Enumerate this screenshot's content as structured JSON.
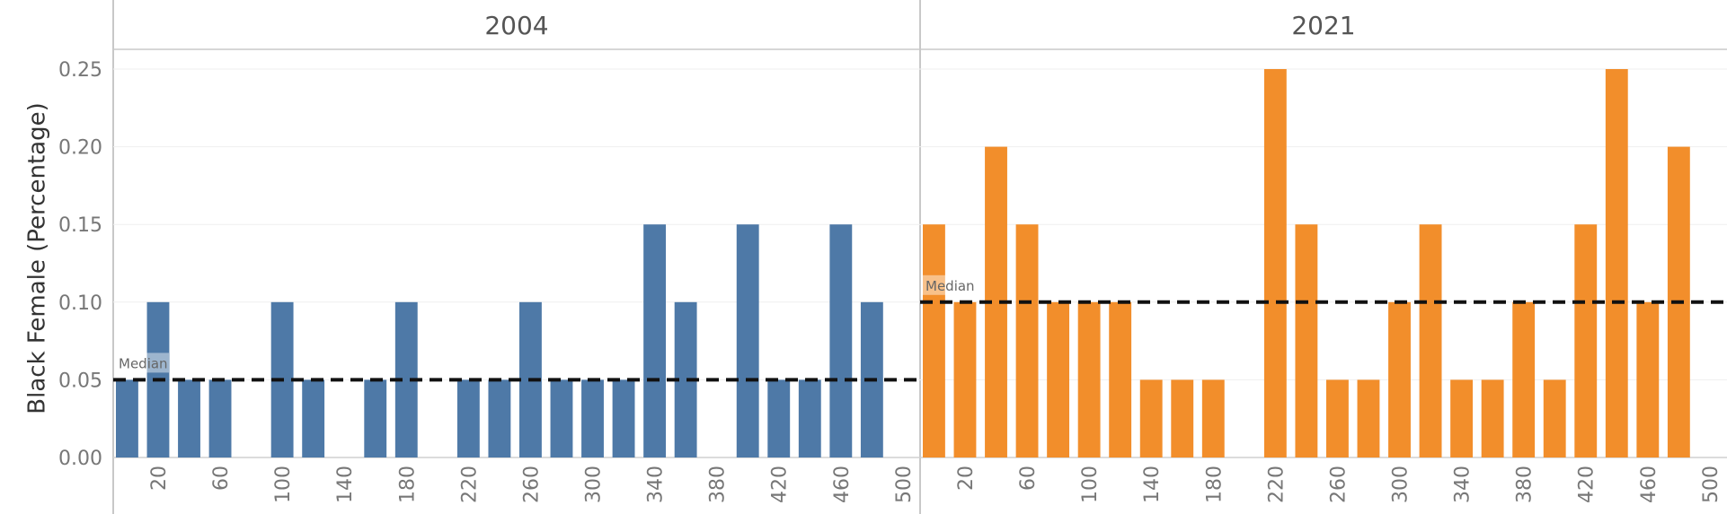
{
  "chart_data": {
    "type": "bar",
    "ylabel": "Black Female (Percentage)",
    "ylim": [
      0,
      0.25
    ],
    "y_ticks": [
      "0.00",
      "0.05",
      "0.10",
      "0.15",
      "0.20",
      "0.25"
    ],
    "y_tick_values": [
      0,
      0.05,
      0.1,
      0.15,
      0.2,
      0.25
    ],
    "x_tick_labels": [
      "20",
      "60",
      "100",
      "140",
      "180",
      "220",
      "260",
      "300",
      "340",
      "380",
      "420",
      "460",
      "500"
    ],
    "x_tick_values": [
      20,
      60,
      100,
      140,
      180,
      220,
      260,
      300,
      340,
      380,
      420,
      460,
      500
    ],
    "x_range": [
      0,
      500
    ],
    "bar_step": 20,
    "grid": true,
    "reference_line_label": "Median",
    "panels": [
      {
        "title": "2004",
        "color": "#4e79a7",
        "median": 0.05,
        "x": [
          0,
          20,
          40,
          60,
          100,
          120,
          160,
          180,
          220,
          240,
          260,
          280,
          300,
          320,
          340,
          360,
          400,
          420,
          440,
          460,
          480
        ],
        "values": [
          0.05,
          0.1,
          0.05,
          0.05,
          0.1,
          0.05,
          0.05,
          0.1,
          0.05,
          0.05,
          0.1,
          0.05,
          0.05,
          0.05,
          0.15,
          0.1,
          0.15,
          0.05,
          0.05,
          0.15,
          0.1
        ]
      },
      {
        "title": "2021",
        "color": "#f28e2b",
        "median": 0.1,
        "x": [
          0,
          20,
          40,
          60,
          80,
          100,
          120,
          140,
          160,
          180,
          220,
          240,
          260,
          280,
          300,
          320,
          340,
          360,
          380,
          400,
          420,
          440,
          460,
          480
        ],
        "values": [
          0.15,
          0.1,
          0.2,
          0.15,
          0.1,
          0.1,
          0.1,
          0.05,
          0.05,
          0.05,
          0.25,
          0.15,
          0.05,
          0.05,
          0.1,
          0.15,
          0.05,
          0.05,
          0.1,
          0.05,
          0.15,
          0.25,
          0.1,
          0.2
        ]
      }
    ]
  }
}
